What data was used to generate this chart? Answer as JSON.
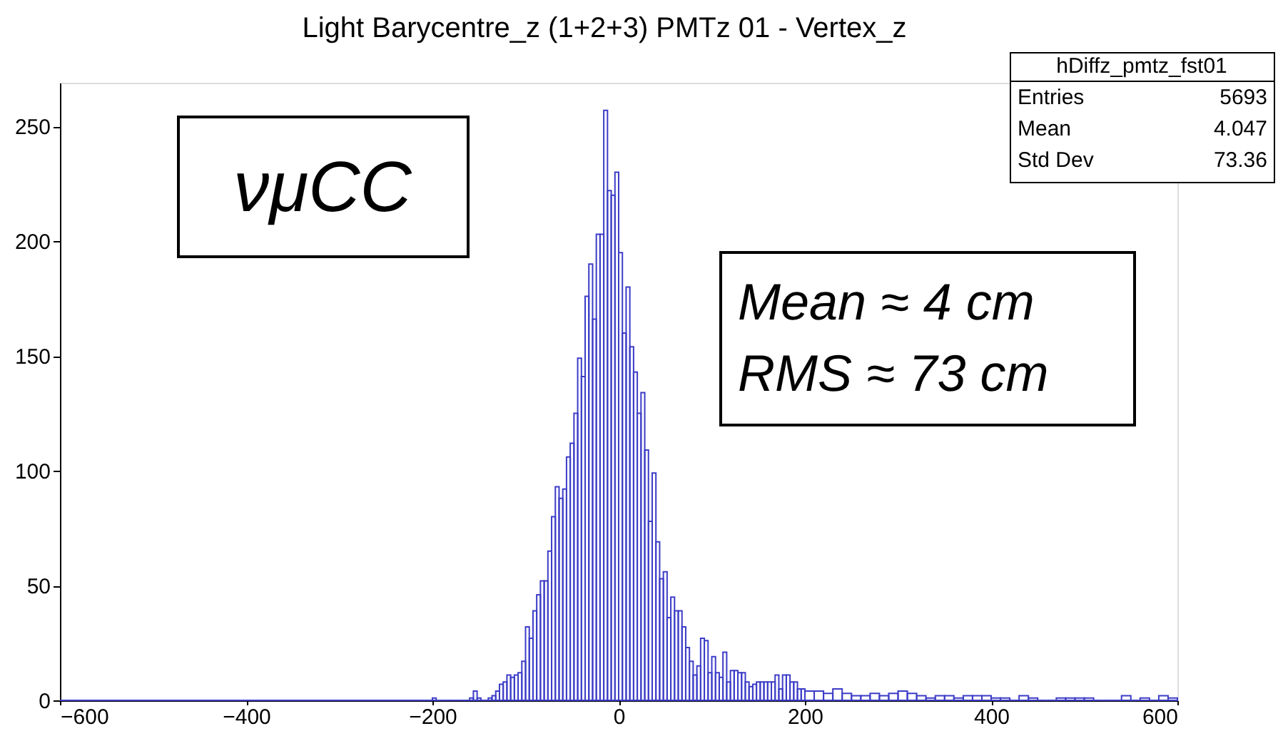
{
  "chart_data": {
    "type": "histogram",
    "title": "Light Barycentre_z (1+2+3) PMTz 01 - Vertex_z",
    "color": "#3c3cc8",
    "bins": [
      -600,
      -200,
      -196,
      -192,
      -188,
      -184,
      -180,
      -176,
      -172,
      -168,
      -164,
      -160,
      -156,
      -152,
      -148,
      -144,
      -140,
      -136,
      -132,
      -128,
      -124,
      -120,
      -116,
      -112,
      -108,
      -104,
      -100,
      -96,
      -92,
      -88,
      -84,
      -80,
      -76,
      -72,
      -68,
      -64,
      -60,
      -56,
      -52,
      -48,
      -44,
      -40,
      -36,
      -32,
      -28,
      -24,
      -20,
      -16,
      -12,
      -8,
      -4,
      0,
      4,
      8,
      12,
      16,
      20,
      24,
      28,
      32,
      36,
      40,
      44,
      48,
      52,
      56,
      60,
      64,
      68,
      72,
      76,
      80,
      84,
      88,
      92,
      96,
      100,
      104,
      108,
      112,
      116,
      120,
      124,
      128,
      132,
      136,
      140,
      144,
      148,
      152,
      156,
      160,
      164,
      168,
      172,
      176,
      180,
      184,
      188,
      192,
      196,
      200,
      210,
      220,
      230,
      240,
      250,
      260,
      270,
      280,
      290,
      300,
      310,
      320,
      330,
      340,
      350,
      360,
      370,
      380,
      390,
      400,
      410,
      420,
      430,
      440,
      450,
      460,
      470,
      480,
      490,
      500,
      510,
      520,
      530,
      540,
      550,
      560,
      570,
      580,
      590,
      600
    ],
    "values": [
      0,
      1,
      0,
      0,
      0,
      0,
      0,
      0,
      0,
      0,
      0,
      1,
      4,
      1,
      0,
      0,
      1,
      2,
      4,
      7,
      8,
      11,
      10,
      11,
      12,
      17,
      32,
      27,
      39,
      46,
      52,
      52,
      65,
      80,
      93,
      88,
      92,
      106,
      112,
      125,
      149,
      141,
      176,
      190,
      166,
      203,
      203,
      257,
      222,
      220,
      230,
      195,
      160,
      180,
      154,
      143,
      125,
      134,
      109,
      78,
      99,
      69,
      53,
      56,
      36,
      45,
      39,
      39,
      32,
      23,
      17,
      11,
      15,
      27,
      26,
      12,
      19,
      12,
      10,
      21,
      8,
      13,
      13,
      12,
      12,
      8,
      6,
      7,
      8,
      8,
      8,
      8,
      8,
      11,
      5,
      11,
      11,
      8,
      8,
      5,
      5,
      4,
      4,
      3,
      5,
      3,
      2,
      2,
      3,
      2,
      3,
      4,
      3,
      2,
      1,
      2,
      2,
      1,
      2,
      2,
      2,
      1,
      1,
      0,
      2,
      1,
      0,
      0,
      1,
      1,
      1,
      1,
      0,
      0,
      0,
      2,
      0,
      1,
      0,
      2,
      1
    ],
    "xlim": [
      -600,
      600
    ],
    "xticks": [
      -600,
      -400,
      -200,
      0,
      200,
      400,
      600
    ],
    "ylim": [
      0,
      269
    ],
    "yticks": [
      0,
      50,
      100,
      150,
      200,
      250
    ],
    "grid": false,
    "annotations": [
      "νμCC",
      "Mean ≈ 4 cm",
      "RMS ≈ 73 cm",
      "hDiffz_pmtz_fst01",
      "Entries",
      "5693",
      "Mean",
      "4.047",
      "Std Dev",
      "73.36"
    ]
  }
}
